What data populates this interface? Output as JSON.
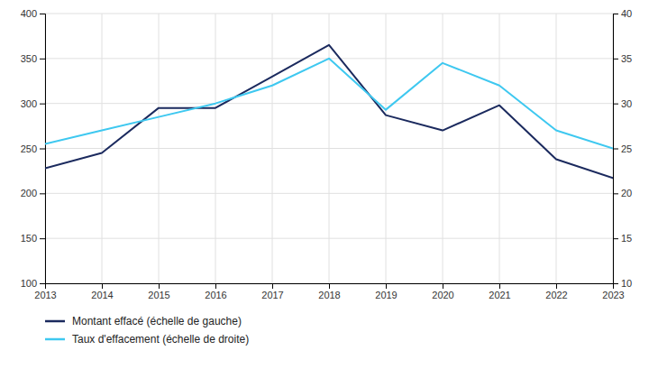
{
  "chart_data": {
    "type": "line",
    "x": [
      2013,
      2014,
      2015,
      2016,
      2017,
      2018,
      2019,
      2020,
      2021,
      2022,
      2023
    ],
    "xlim": [
      2013,
      2023
    ],
    "xticks": [
      2013,
      2014,
      2015,
      2016,
      2017,
      2018,
      2019,
      2020,
      2021,
      2022,
      2023
    ],
    "ylim": [
      100,
      400
    ],
    "yticks": [
      100,
      150,
      200,
      250,
      300,
      350,
      400
    ],
    "y2lim": [
      10,
      40
    ],
    "y2ticks": [
      10,
      15,
      20,
      25,
      30,
      35,
      40
    ],
    "series": [
      {
        "name": "Montant effacé (échelle de gauche)",
        "color": "#1b2a5e",
        "values": [
          228,
          245,
          295,
          295,
          330,
          365,
          287,
          270,
          298,
          238,
          217
        ]
      },
      {
        "name": "Taux d'effacement (échelle de droite)",
        "color": "#3ec8f0",
        "axis": "y2",
        "values": [
          25.5,
          27.0,
          28.5,
          30.0,
          32.0,
          35.0,
          29.3,
          34.5,
          32.0,
          27.0,
          25.0
        ]
      }
    ],
    "grid": true,
    "legend": "bottom"
  }
}
